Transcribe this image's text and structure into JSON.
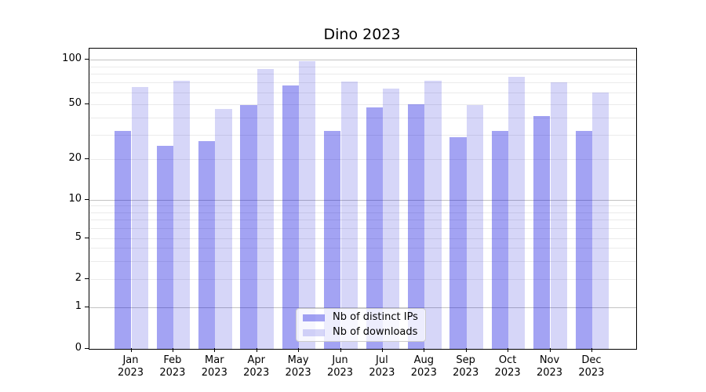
{
  "title": "Dino 2023",
  "chart_data": {
    "type": "bar",
    "title": "Dino 2023",
    "year": "2023",
    "months": [
      "Jan",
      "Feb",
      "Mar",
      "Apr",
      "May",
      "Jun",
      "Jul",
      "Aug",
      "Sep",
      "Oct",
      "Nov",
      "Dec"
    ],
    "categories": [
      "Jan 2023",
      "Feb 2023",
      "Mar 2023",
      "Apr 2023",
      "May 2023",
      "Jun 2023",
      "Jul 2023",
      "Aug 2023",
      "Sep 2023",
      "Oct 2023",
      "Nov 2023",
      "Dec 2023"
    ],
    "series": [
      {
        "name": "Nb of distinct IPs",
        "values": [
          32,
          25,
          27,
          49,
          67,
          32,
          47,
          50,
          29,
          32,
          41,
          32
        ],
        "color": "rgba(0,0,222,0.36)",
        "solid_color": "#a3a3f4"
      },
      {
        "name": "Nb of downloads",
        "values": [
          65,
          72,
          46,
          87,
          98,
          71,
          64,
          72,
          49,
          77,
          70,
          60
        ],
        "color": "rgba(0,0,210,0.16)",
        "solid_color": "#d6d6f8"
      }
    ],
    "yscale": "symlog",
    "y_ticks": [
      0,
      1,
      2,
      5,
      10,
      20,
      50,
      100
    ],
    "y_minor_gridlines": [
      2,
      3,
      4,
      5,
      6,
      7,
      8,
      9,
      20,
      30,
      40,
      50,
      60,
      70,
      80,
      90
    ],
    "y_major_gridlines": [
      1,
      10,
      100
    ],
    "ylim": [
      0,
      115
    ],
    "grid": true,
    "legend_position": "lower center"
  }
}
